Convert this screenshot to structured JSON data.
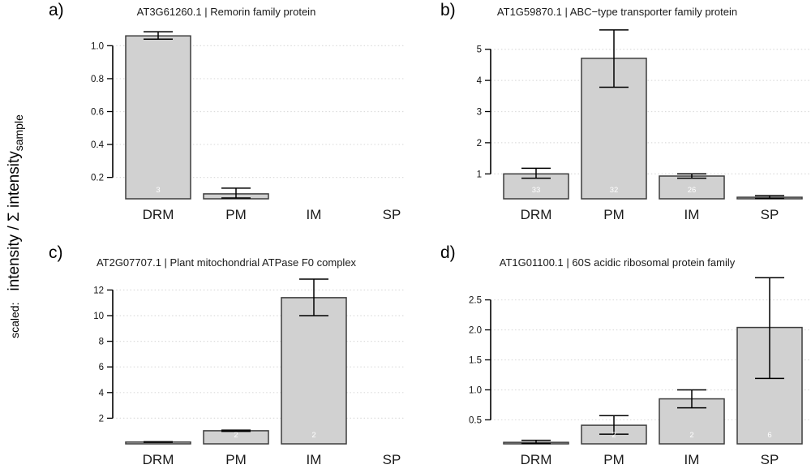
{
  "figure": {
    "ylabel": {
      "prefix": "scaled:",
      "main": "intensity / Σ intensity",
      "subscript": "sample"
    }
  },
  "colors": {
    "background": "#ffffff",
    "bar_fill": "#d1d1d1",
    "bar_border": "#3d3d3d",
    "error_bar": "#000000",
    "grid_line": "#dcdcdc",
    "axis_line": "#000000",
    "tick_text": "#111111",
    "category_text": "#1a1a1a",
    "count_text": "#ffffff"
  },
  "chart_data": [
    {
      "panel": "a)",
      "type": "bar",
      "title": "AT3G61260.1 | Remorin family protein",
      "categories": [
        "DRM",
        "PM",
        "IM",
        "SP"
      ],
      "values": [
        1.06,
        0.1,
        0.002,
        0.001
      ],
      "error_low": [
        1.04,
        0.075,
        null,
        null
      ],
      "error_high": [
        1.085,
        0.135,
        null,
        null
      ],
      "counts": [
        "3",
        null,
        null,
        null
      ],
      "yticks": [
        0.2,
        0.4,
        0.6,
        0.8,
        1.0
      ],
      "ytick_labels": [
        "0.2",
        "0.4",
        "0.6",
        "0.8",
        "1.0"
      ],
      "ylim": [
        0.07,
        1.13
      ],
      "grid": true
    },
    {
      "panel": "b)",
      "type": "bar",
      "title": "AT1G59870.1 | ABC−type transporter family protein",
      "categories": [
        "DRM",
        "PM",
        "IM",
        "SP"
      ],
      "values": [
        1.0,
        4.71,
        0.93,
        0.25
      ],
      "error_low": [
        0.86,
        3.78,
        0.86,
        0.21
      ],
      "error_high": [
        1.18,
        5.62,
        1.0,
        0.3
      ],
      "counts": [
        "33",
        "32",
        "26",
        null
      ],
      "yticks": [
        1,
        2,
        3,
        4,
        5
      ],
      "ytick_labels": [
        "1",
        "2",
        "3",
        "4",
        "5"
      ],
      "ylim": [
        0.2,
        5.8
      ],
      "grid": true
    },
    {
      "panel": "c)",
      "type": "bar",
      "title": "AT2G07707.1 | Plant mitochondrial ATPase F0 complex",
      "categories": [
        "DRM",
        "PM",
        "IM",
        "SP"
      ],
      "values": [
        0.14,
        1.02,
        11.4,
        0.01
      ],
      "error_low": [
        0.12,
        0.97,
        10.0,
        null
      ],
      "error_high": [
        0.17,
        1.07,
        12.85,
        null
      ],
      "counts": [
        null,
        "2",
        "2",
        null
      ],
      "yticks": [
        2,
        4,
        6,
        8,
        10,
        12
      ],
      "ytick_labels": [
        "2",
        "4",
        "6",
        "8",
        "10",
        "12"
      ],
      "ylim": [
        0,
        13.1
      ],
      "grid": true
    },
    {
      "panel": "d)",
      "type": "bar",
      "title": "AT1G01100.1 | 60S acidic ribosomal protein family",
      "categories": [
        "DRM",
        "PM",
        "IM",
        "SP"
      ],
      "values": [
        0.125,
        0.41,
        0.85,
        2.04
      ],
      "error_low": [
        0.105,
        0.26,
        0.7,
        1.19
      ],
      "error_high": [
        0.16,
        0.57,
        1.0,
        2.87
      ],
      "counts": [
        null,
        "2",
        "2",
        "6"
      ],
      "yticks": [
        0.5,
        1.0,
        1.5,
        2.0,
        2.5
      ],
      "ytick_labels": [
        "0.5",
        "1.0",
        "1.5",
        "2.0",
        "2.5"
      ],
      "ylim": [
        0.1,
        2.9
      ],
      "grid": true
    }
  ]
}
